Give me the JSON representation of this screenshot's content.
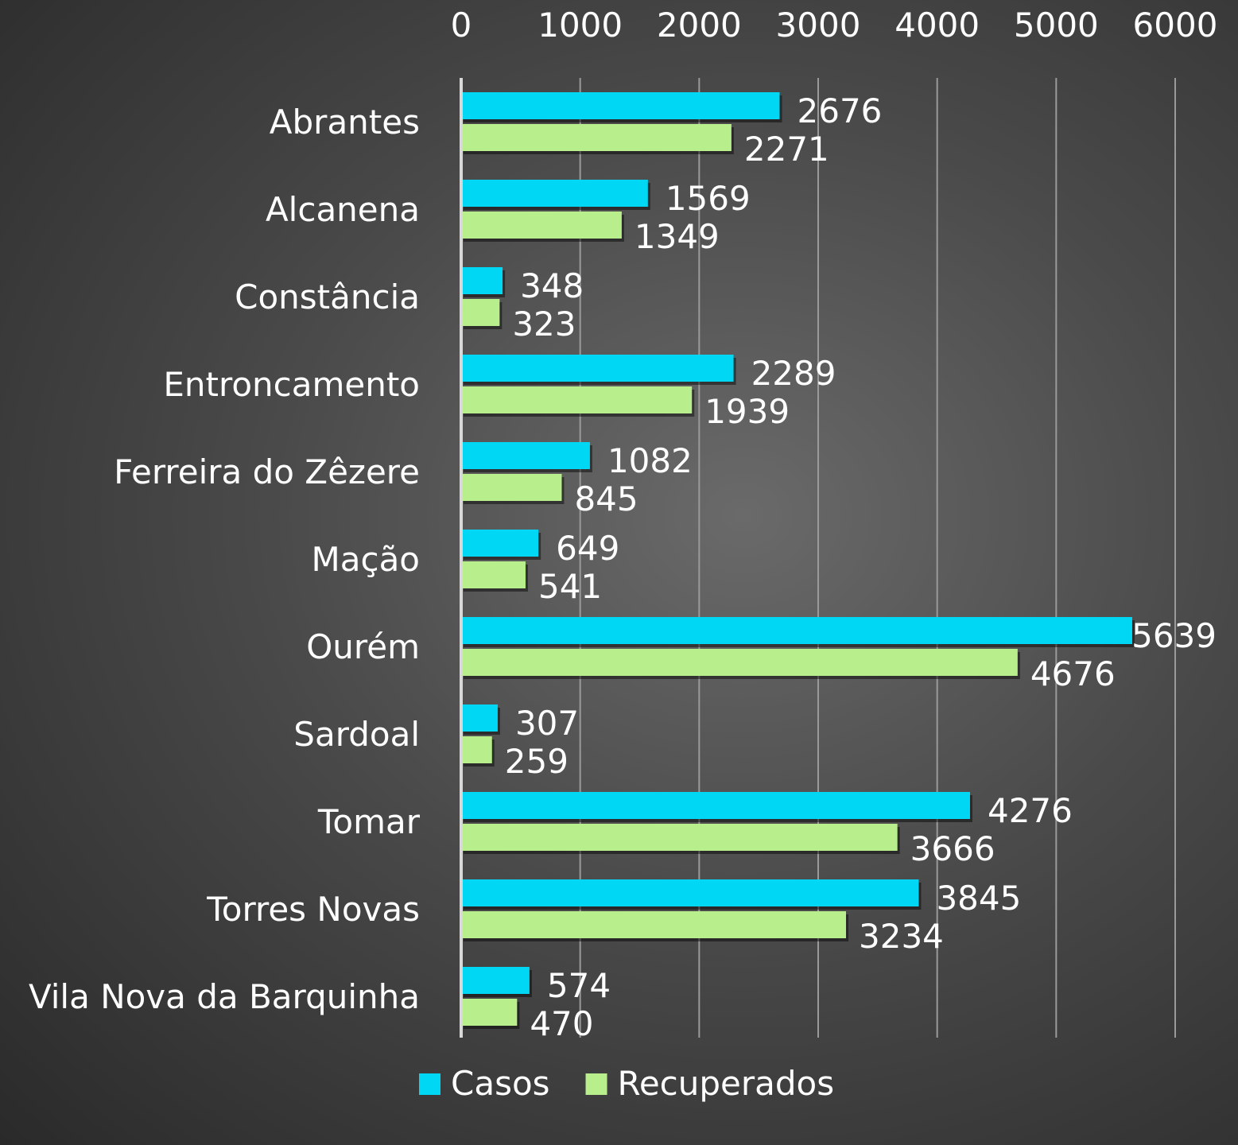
{
  "chart_data": {
    "type": "bar",
    "orientation": "horizontal",
    "categories": [
      "Abrantes",
      "Alcanena",
      "Constância",
      "Entroncamento",
      "Ferreira do Zêzere",
      "Mação",
      "Ourém",
      "Sardoal",
      "Tomar",
      "Torres Novas",
      "Vila Nova da Barquinha"
    ],
    "series": [
      {
        "name": "Casos",
        "color": "#00d7f5",
        "values": [
          2676,
          1569,
          348,
          2289,
          1082,
          649,
          5639,
          307,
          4276,
          3845,
          574
        ]
      },
      {
        "name": "Recuperados",
        "color": "#b8ee8c",
        "values": [
          2271,
          1349,
          323,
          1939,
          845,
          541,
          4676,
          259,
          3666,
          3234,
          470
        ]
      }
    ],
    "xlim": [
      0,
      6000
    ],
    "x_ticks": [
      "0",
      "1000",
      "2000",
      "3000",
      "4000",
      "5000",
      "6000"
    ],
    "x_axis_position": "top",
    "grid": true,
    "legend_position": "bottom"
  }
}
